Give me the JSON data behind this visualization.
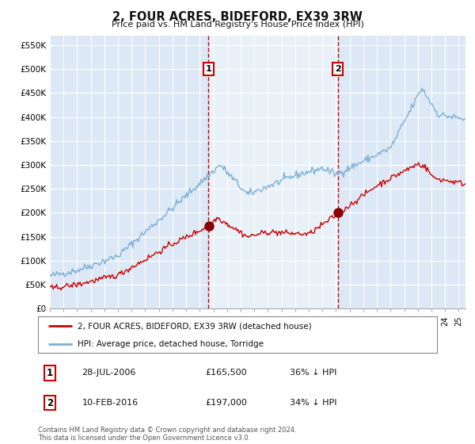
{
  "title": "2, FOUR ACRES, BIDEFORD, EX39 3RW",
  "subtitle": "Price paid vs. HM Land Registry's House Price Index (HPI)",
  "legend_entry1": "2, FOUR ACRES, BIDEFORD, EX39 3RW (detached house)",
  "legend_entry2": "HPI: Average price, detached house, Torridge",
  "annotation1_date": "28-JUL-2006",
  "annotation1_price": 165500,
  "annotation1_hpi": "36% ↓ HPI",
  "annotation2_date": "10-FEB-2016",
  "annotation2_price": 197000,
  "annotation2_hpi": "34% ↓ HPI",
  "footnote": "Contains HM Land Registry data © Crown copyright and database right 2024.\nThis data is licensed under the Open Government Licence v3.0.",
  "red_color": "#cc0000",
  "blue_color": "#7bafd4",
  "shade_color": "#dce8f5",
  "background_color": "#dce8f5",
  "grid_color": "#ffffff",
  "ylim": [
    0,
    570000
  ],
  "yticks": [
    0,
    50000,
    100000,
    150000,
    200000,
    250000,
    300000,
    350000,
    400000,
    450000,
    500000,
    550000
  ],
  "sale1_year": 2006.64,
  "sale2_year": 2016.12
}
